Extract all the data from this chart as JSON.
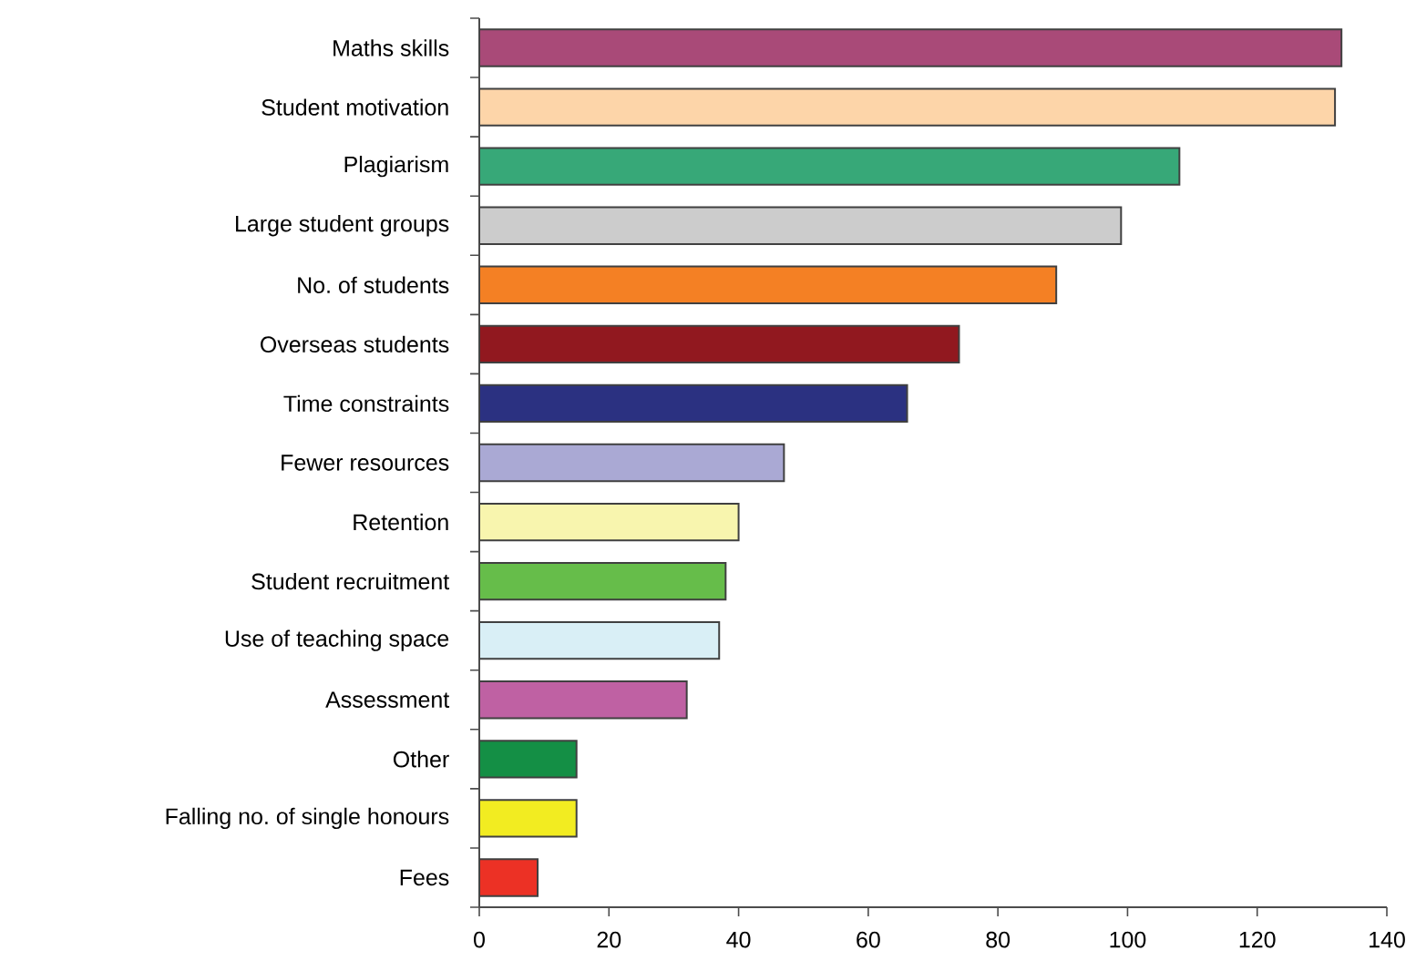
{
  "chart_data": {
    "type": "bar",
    "orientation": "horizontal",
    "categories": [
      "Maths skills",
      "Student motivation",
      "Plagiarism",
      "Large student groups",
      "No. of students",
      "Overseas students",
      "Time constraints",
      "Fewer resources",
      "Retention",
      "Student recruitment",
      "Use of teaching space",
      "Assessment",
      "Other",
      "Falling no. of single honours",
      "Fees"
    ],
    "values": [
      133,
      132,
      108,
      99,
      89,
      74,
      66,
      47,
      40,
      38,
      37,
      32,
      15,
      15,
      9
    ],
    "colors": [
      "#a94a78",
      "#fdd5a9",
      "#37a878",
      "#cccccc",
      "#f48024",
      "#91181f",
      "#2b3181",
      "#aaa9d4",
      "#f8f5ae",
      "#66bd4a",
      "#d9eff6",
      "#bf61a3",
      "#148f45",
      "#f2ec21",
      "#ec3125"
    ],
    "xlim": [
      0,
      140
    ],
    "xticks": [
      0,
      20,
      40,
      60,
      80,
      100,
      120,
      140
    ]
  }
}
